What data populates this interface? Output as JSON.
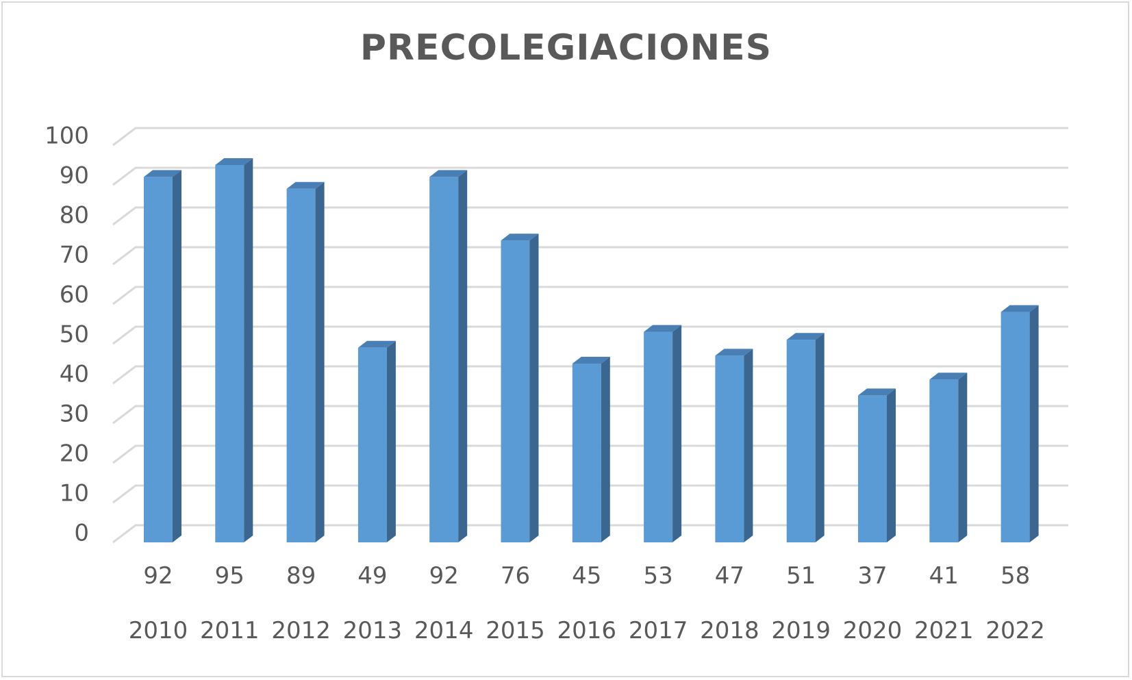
{
  "chart_data": {
    "type": "bar",
    "title": "PRECOLEGIACIONES",
    "categories": [
      "2010",
      "2011",
      "2012",
      "2013",
      "2014",
      "2015",
      "2016",
      "2017",
      "2018",
      "2019",
      "2020",
      "2021",
      "2022"
    ],
    "values": [
      92,
      95,
      89,
      49,
      92,
      76,
      45,
      53,
      47,
      51,
      37,
      41,
      58
    ],
    "ylim": [
      0,
      100
    ],
    "yticks": [
      0,
      10,
      20,
      30,
      40,
      50,
      60,
      70,
      80,
      90,
      100
    ],
    "grid": true,
    "legend": "none",
    "data_labels_position": "below-axis",
    "colors": {
      "bar_front": "#5b9bd5",
      "bar_side": "#3a6690",
      "bar_top": "#4a7fb5",
      "grid": "#d9d9d9",
      "text": "#595959"
    }
  }
}
